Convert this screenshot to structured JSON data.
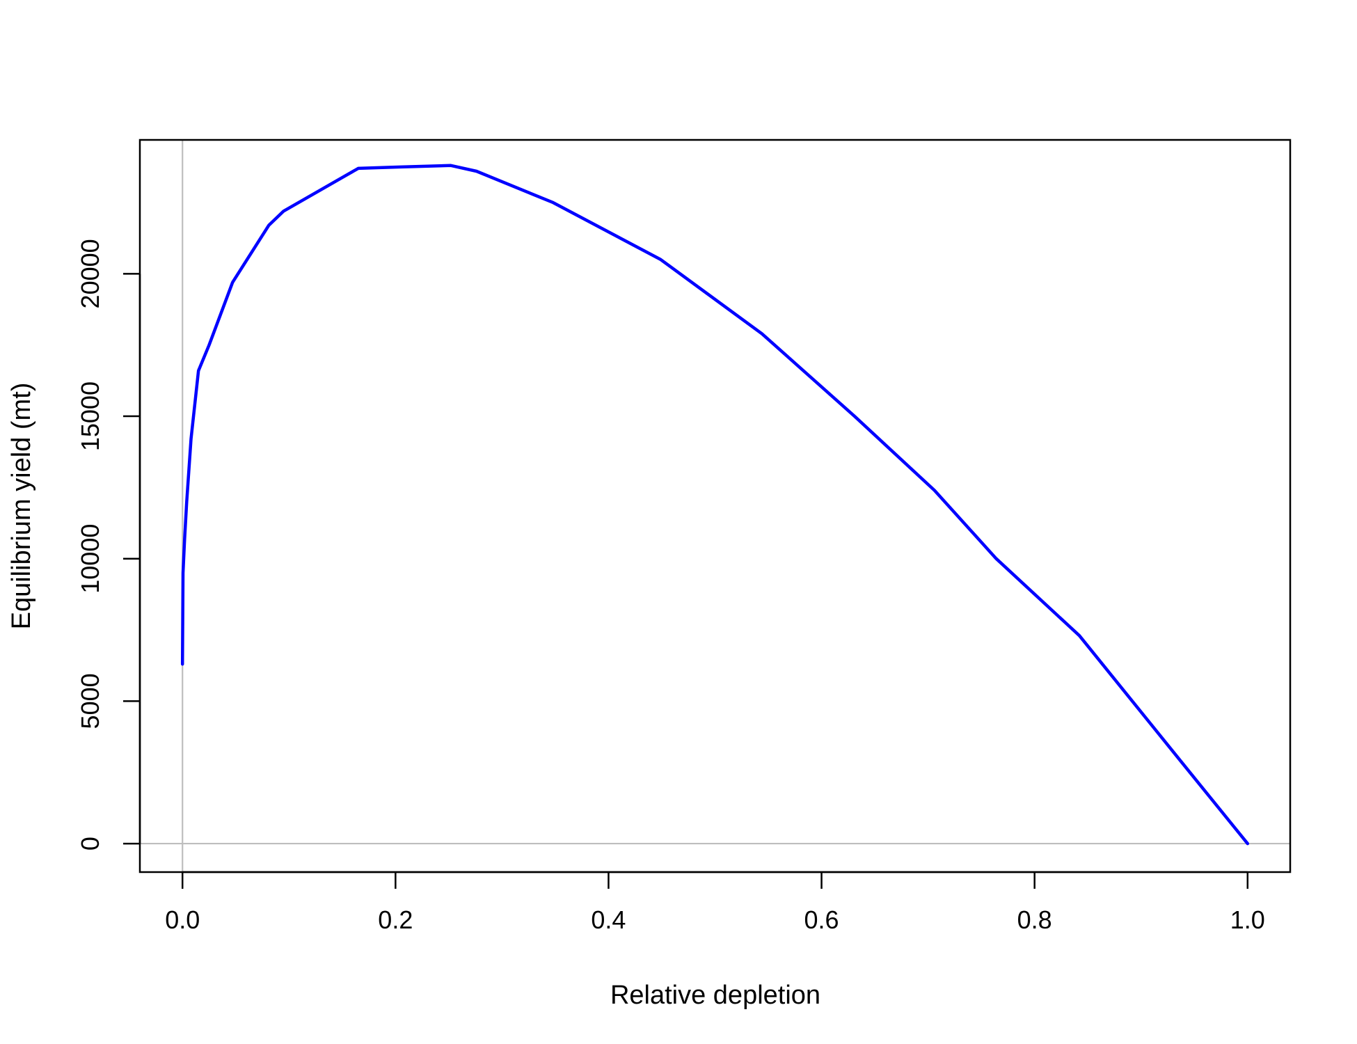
{
  "chart_data": {
    "type": "line",
    "title": "",
    "xlabel": "Relative depletion",
    "ylabel": "Equilibrium yield (mt)",
    "xlim": [
      -0.04,
      1.04
    ],
    "ylim": [
      -1000,
      24700
    ],
    "x_ticks": [
      0.0,
      0.2,
      0.4,
      0.6,
      0.8,
      1.0
    ],
    "x_tick_labels": [
      "0.0",
      "0.2",
      "0.4",
      "0.6",
      "0.8",
      "1.0"
    ],
    "y_ticks": [
      0,
      5000,
      10000,
      15000,
      20000
    ],
    "y_tick_labels": [
      "0",
      "5000",
      "10000",
      "15000",
      "20000"
    ],
    "grid": false,
    "reference_lines": {
      "x": 0,
      "y": 0,
      "color": "#bebebe"
    },
    "series": [
      {
        "color": "#0000ff",
        "x": [
          0.0,
          0.0005,
          0.002,
          0.004,
          0.008,
          0.015,
          0.025,
          0.047,
          0.081,
          0.095,
          0.165,
          0.205,
          0.252,
          0.276,
          0.348,
          0.449,
          0.544,
          0.631,
          0.706,
          0.764,
          0.842,
          0.935,
          1.0
        ],
        "y": [
          6300,
          9500,
          10700,
          12000,
          14200,
          16600,
          17500,
          19700,
          21700,
          22200,
          23700,
          23750,
          23800,
          23600,
          22500,
          20500,
          17900,
          15000,
          12400,
          10000,
          7300,
          3000,
          0
        ]
      }
    ]
  }
}
